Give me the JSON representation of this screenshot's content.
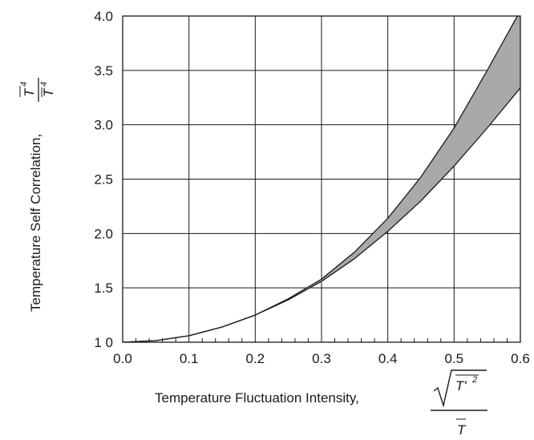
{
  "chart_data": {
    "type": "area",
    "xlabel": "Temperature Fluctuation Intensity,",
    "xlabel_fraction": {
      "numerator": "T'",
      "numerator_power": "2",
      "denominator": "T"
    },
    "ylabel": "Temperature Self Correlation,",
    "ylabel_fraction": {
      "numerator": "T",
      "numerator_power": "4",
      "denominator": "T",
      "denominator_power": "4"
    },
    "xlim": [
      0.0,
      0.6
    ],
    "ylim": [
      1.0,
      4.0
    ],
    "x_tick_labels": [
      "0.0",
      "0.1",
      "0.2",
      "0.3",
      "0.4",
      "0.5",
      "0.6"
    ],
    "y_tick_labels": [
      "1 0",
      "1.5",
      "2.0",
      "2.5",
      "3.0",
      "3.5",
      "4.0"
    ],
    "grid": true,
    "band_fill_color": "#a9a9a9",
    "series": [
      {
        "x": [
          0.0,
          0.05,
          0.1,
          0.15,
          0.2,
          0.25,
          0.3,
          0.35,
          0.4,
          0.45,
          0.5,
          0.55,
          0.6
        ],
        "y": [
          1.0,
          1.015,
          1.06,
          1.14,
          1.25,
          1.4,
          1.58,
          1.83,
          2.14,
          2.52,
          2.97,
          3.5,
          4.05
        ]
      },
      {
        "x": [
          0.0,
          0.05,
          0.1,
          0.15,
          0.2,
          0.25,
          0.3,
          0.35,
          0.4,
          0.45,
          0.5,
          0.55,
          0.6
        ],
        "y": [
          1.0,
          1.015,
          1.06,
          1.14,
          1.25,
          1.39,
          1.56,
          1.77,
          2.02,
          2.3,
          2.62,
          2.97,
          3.34
        ]
      }
    ]
  }
}
